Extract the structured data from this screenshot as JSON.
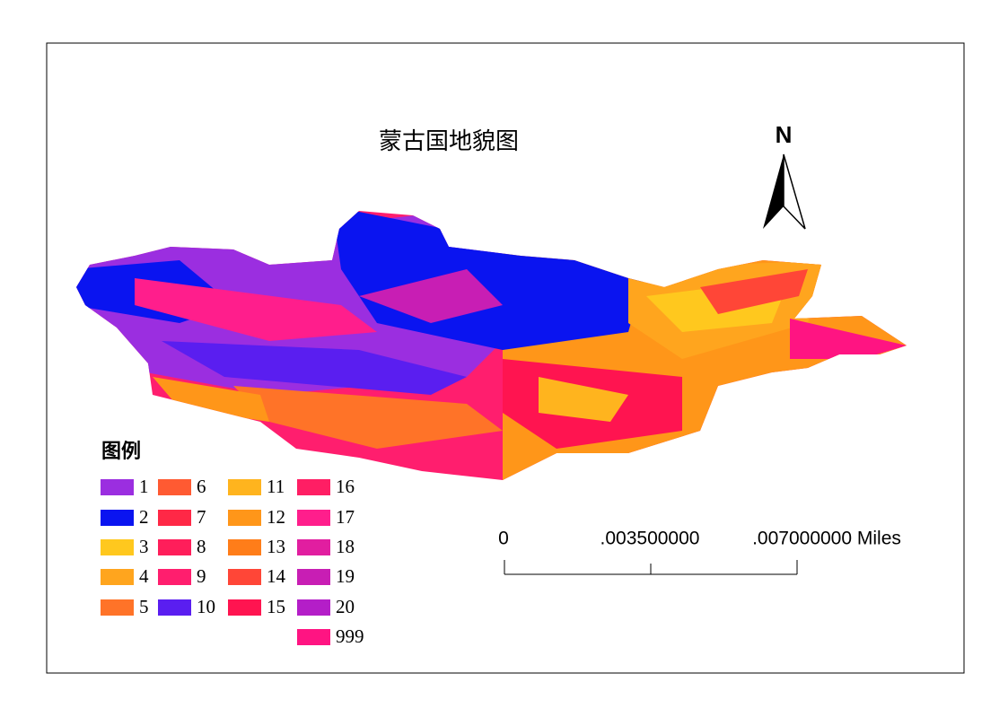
{
  "map": {
    "title": "蒙古国地貌图",
    "north_arrow": "N",
    "legend": {
      "title": "图例",
      "items": [
        {
          "label": "1",
          "color": "#9b2ee0"
        },
        {
          "label": "2",
          "color": "#0a14f0"
        },
        {
          "label": "3",
          "color": "#ffc81e"
        },
        {
          "label": "4",
          "color": "#ffa51e"
        },
        {
          "label": "5",
          "color": "#ff7328"
        },
        {
          "label": "6",
          "color": "#ff5a32"
        },
        {
          "label": "7",
          "color": "#ff2846"
        },
        {
          "label": "8",
          "color": "#ff1e5a"
        },
        {
          "label": "9",
          "color": "#ff1e6e"
        },
        {
          "label": "10",
          "color": "#5a1ef0"
        },
        {
          "label": "11",
          "color": "#ffb41e"
        },
        {
          "label": "12",
          "color": "#ff9619"
        },
        {
          "label": "13",
          "color": "#ff7d19"
        },
        {
          "label": "14",
          "color": "#ff4637"
        },
        {
          "label": "15",
          "color": "#ff1450"
        },
        {
          "label": "16",
          "color": "#ff1e64"
        },
        {
          "label": "17",
          "color": "#ff1e8c"
        },
        {
          "label": "18",
          "color": "#e11ea0"
        },
        {
          "label": "19",
          "color": "#c81eb4"
        },
        {
          "label": "20",
          "color": "#b41ec8"
        },
        {
          "label": "999",
          "color": "#ff1482"
        }
      ]
    },
    "scale_bar": {
      "labels": [
        "0",
        ".003500000",
        ".007000000 Miles"
      ]
    }
  }
}
